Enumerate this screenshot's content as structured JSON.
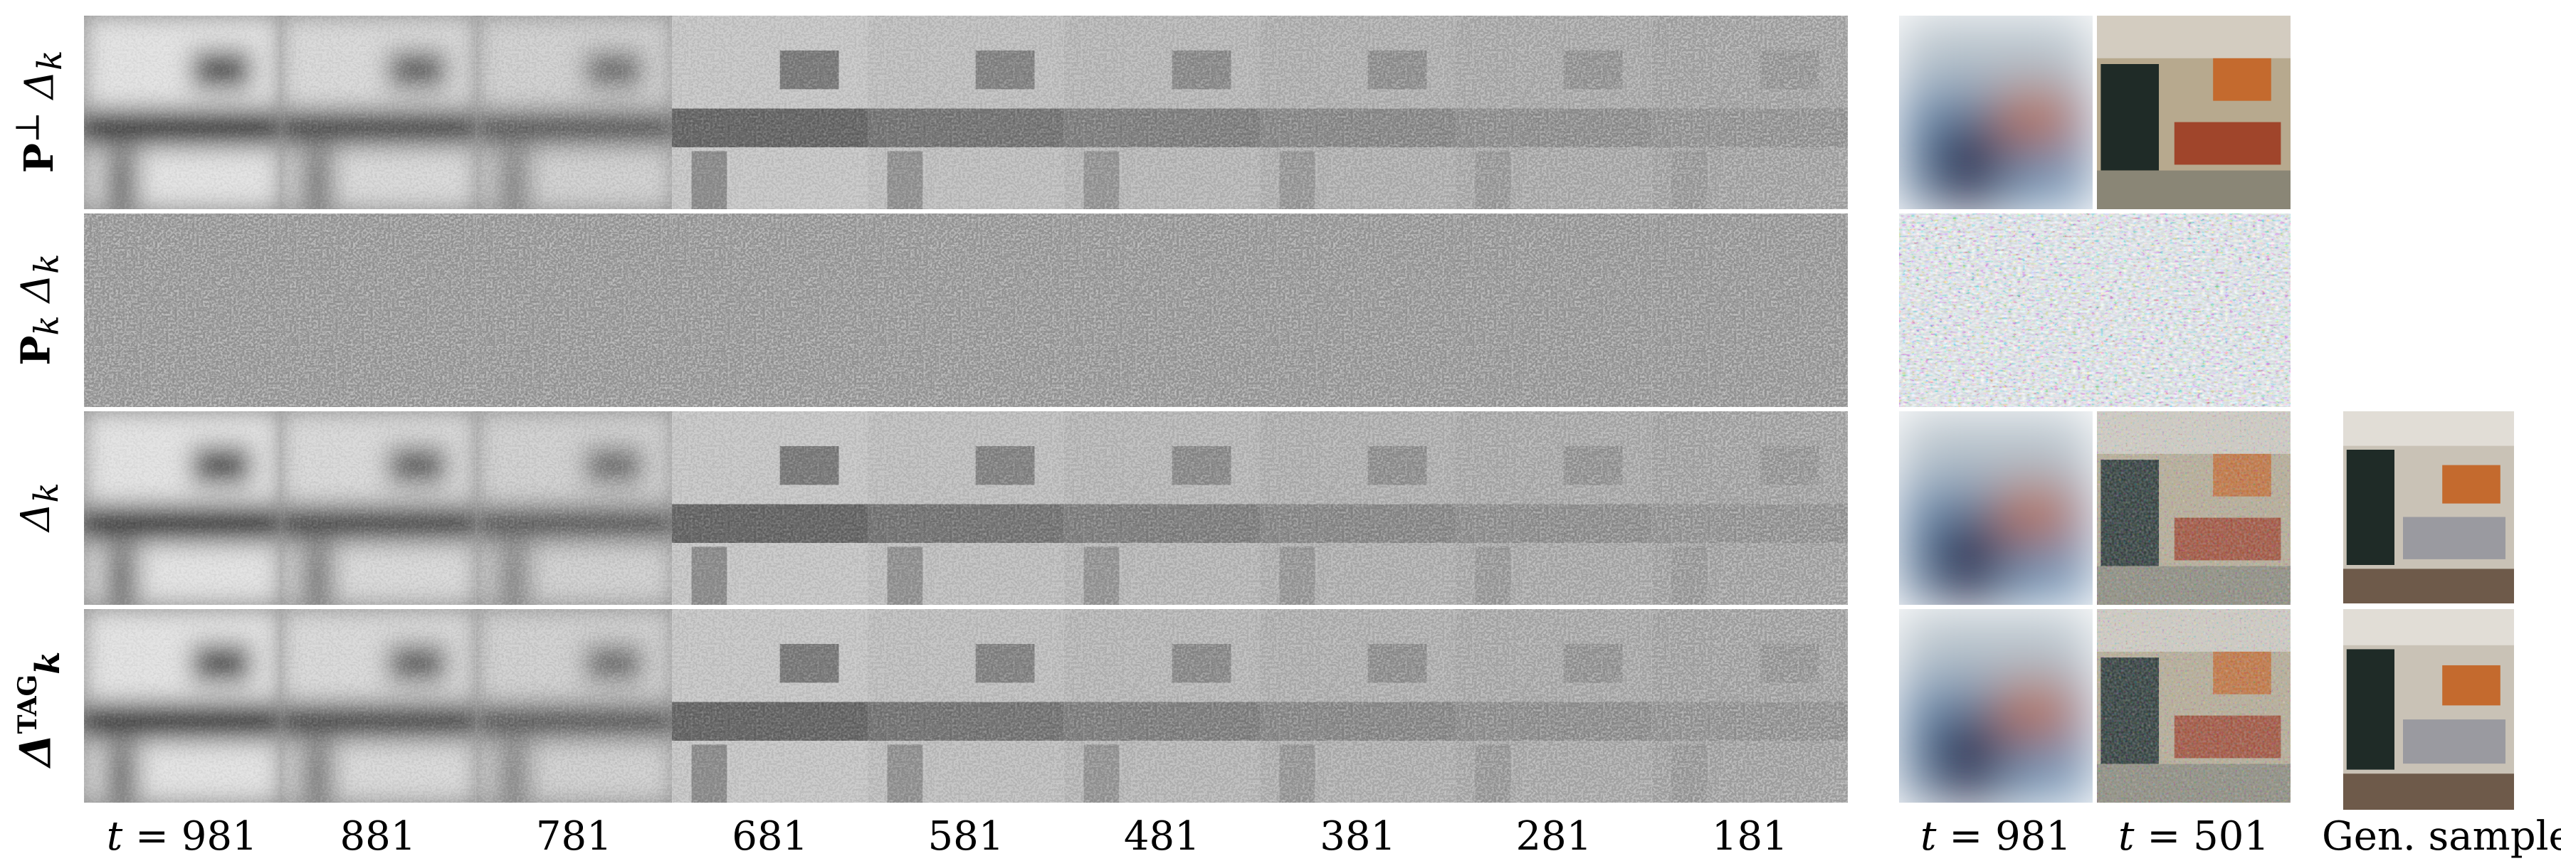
{
  "row_labels": [
    {
      "main": "P",
      "sup": "⊥",
      "sub": "",
      "delta": "Δ",
      "dsub": "k"
    },
    {
      "main": "P",
      "sup": "",
      "sub": "k",
      "delta": "Δ",
      "dsub": "k"
    },
    {
      "main": "",
      "sup": "",
      "sub": "",
      "delta": "Δ",
      "dsub": "k"
    },
    {
      "main": "",
      "sup": "TAG",
      "sub": "k",
      "delta": "Δ",
      "dsub": ""
    }
  ],
  "timestep_var": "t",
  "timestep_eq": " = ",
  "grayscale_timesteps": [
    "981",
    "881",
    "781",
    "681",
    "581",
    "481",
    "381",
    "281",
    "181"
  ],
  "color_timesteps": [
    "981",
    "501"
  ],
  "generated_label": "Gen. sample",
  "colors": {
    "gray_dark": "#1a1a1a",
    "gray_light": "#e6e6e6",
    "wall_blue": "#6f8fb0",
    "room_orange": "#c46a2e",
    "sofa_gray": "#9a9aa0",
    "window_dark": "#1f2b27"
  }
}
